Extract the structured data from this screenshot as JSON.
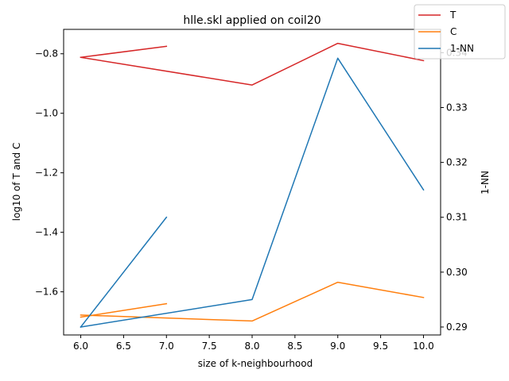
{
  "chart_data": {
    "type": "line",
    "title": "hlle.skl applied on coil20",
    "xlabel": "size of k-neighbourhood",
    "ylabel_left": "log10 of T and C",
    "ylabel_right": "1-NN",
    "xlim": [
      5.8,
      10.2
    ],
    "ylim_left": [
      -1.745,
      -0.718
    ],
    "ylim_right": [
      0.28855,
      0.34425
    ],
    "x_ticks": [
      6.0,
      6.5,
      7.0,
      7.5,
      8.0,
      8.5,
      9.0,
      9.5,
      10.0
    ],
    "x_tick_labels": [
      "6.0",
      "6.5",
      "7.0",
      "7.5",
      "8.0",
      "8.5",
      "9.0",
      "9.5",
      "10.0"
    ],
    "y_ticks_left": [
      -1.6,
      -1.4,
      -1.2,
      -1.0,
      -0.8
    ],
    "y_tick_labels_left": [
      "−1.6",
      "−1.4",
      "−1.2",
      "−1.0",
      "−0.8"
    ],
    "y_ticks_right": [
      0.29,
      0.3,
      0.31,
      0.32,
      0.33,
      0.34
    ],
    "y_tick_labels_right": [
      "0.29",
      "0.30",
      "0.31",
      "0.32",
      "0.33",
      "0.34"
    ],
    "legend_position": "top-right",
    "series": [
      {
        "name": "T",
        "axis": "left",
        "color": "#d62728",
        "segments": [
          [
            [
              6,
              -0.812
            ],
            [
              7,
              -0.775
            ]
          ],
          [
            [
              6,
              -0.812
            ],
            [
              8,
              -0.905
            ],
            [
              9,
              -0.765
            ],
            [
              10,
              -0.823
            ]
          ]
        ]
      },
      {
        "name": "C",
        "axis": "left",
        "color": "#ff7f0e",
        "segments": [
          [
            [
              6,
              -1.685
            ],
            [
              7,
              -1.64
            ]
          ],
          [
            [
              6,
              -1.678
            ],
            [
              8,
              -1.698
            ],
            [
              9,
              -1.568
            ],
            [
              10,
              -1.619
            ]
          ]
        ]
      },
      {
        "name": "1-NN",
        "axis": "right",
        "color": "#1f77b4",
        "segments": [
          [
            [
              6,
              0.29
            ],
            [
              7,
              0.31
            ]
          ],
          [
            [
              6,
              0.29
            ],
            [
              8,
              0.295
            ],
            [
              9,
              0.339
            ],
            [
              10,
              0.315
            ]
          ]
        ]
      }
    ]
  }
}
